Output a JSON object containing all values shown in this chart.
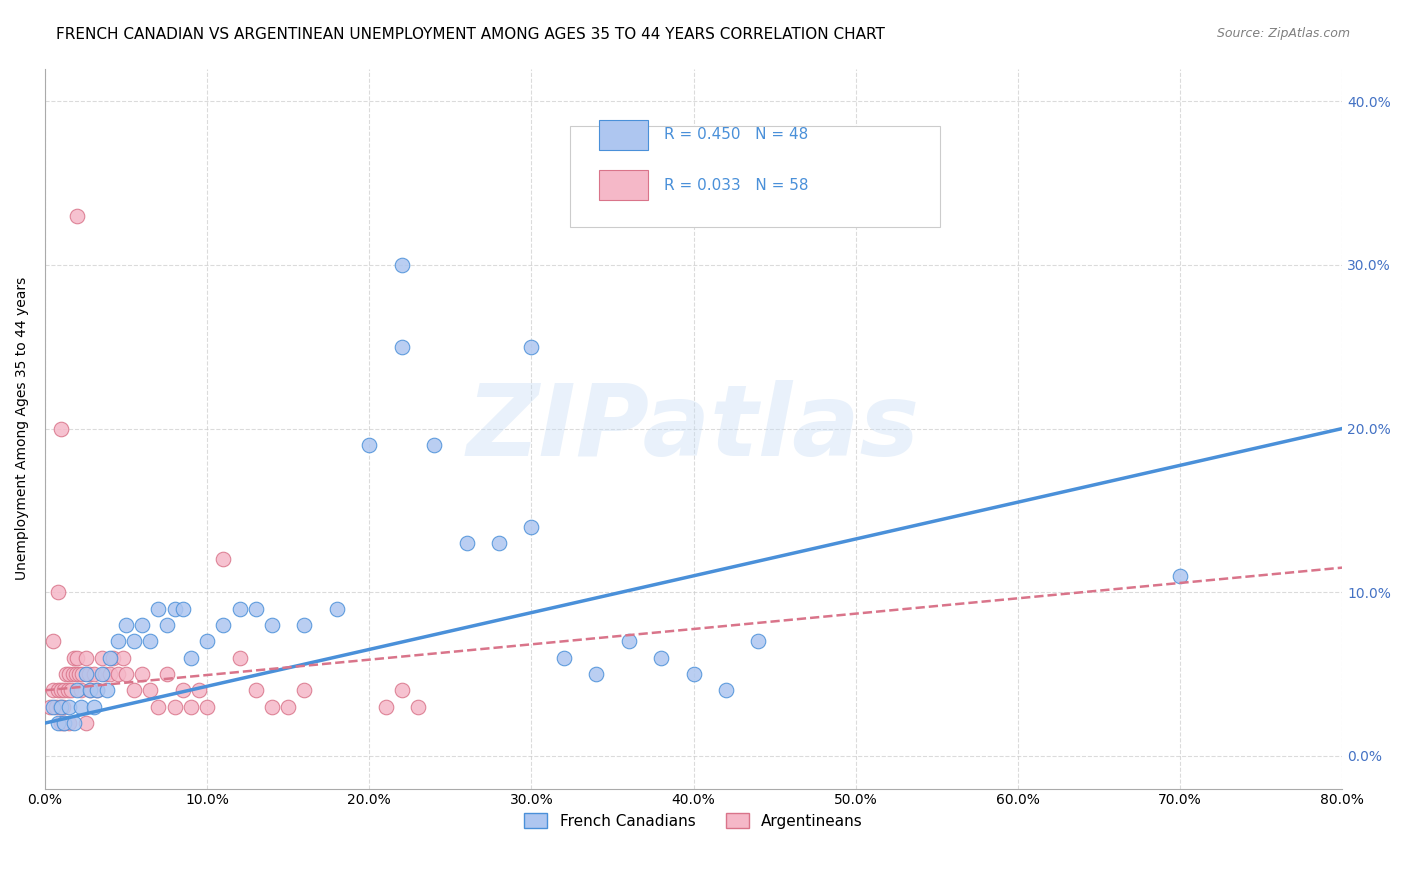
{
  "title": "FRENCH CANADIAN VS ARGENTINEAN UNEMPLOYMENT AMONG AGES 35 TO 44 YEARS CORRELATION CHART",
  "source": "Source: ZipAtlas.com",
  "ylabel": "Unemployment Among Ages 35 to 44 years",
  "xlim": [
    0.0,
    0.8
  ],
  "ylim": [
    -0.02,
    0.42
  ],
  "blue_scatter_x": [
    0.005,
    0.008,
    0.01,
    0.012,
    0.015,
    0.018,
    0.02,
    0.022,
    0.025,
    0.028,
    0.03,
    0.032,
    0.035,
    0.038,
    0.04,
    0.045,
    0.05,
    0.055,
    0.06,
    0.065,
    0.07,
    0.075,
    0.08,
    0.085,
    0.09,
    0.1,
    0.11,
    0.12,
    0.13,
    0.14,
    0.16,
    0.18,
    0.2,
    0.22,
    0.24,
    0.26,
    0.28,
    0.3,
    0.32,
    0.34,
    0.36,
    0.38,
    0.4,
    0.42,
    0.44,
    0.22,
    0.3,
    0.7
  ],
  "blue_scatter_y": [
    0.03,
    0.02,
    0.03,
    0.02,
    0.03,
    0.02,
    0.04,
    0.03,
    0.05,
    0.04,
    0.03,
    0.04,
    0.05,
    0.04,
    0.06,
    0.07,
    0.08,
    0.07,
    0.08,
    0.07,
    0.09,
    0.08,
    0.09,
    0.09,
    0.06,
    0.07,
    0.08,
    0.09,
    0.09,
    0.08,
    0.08,
    0.09,
    0.19,
    0.25,
    0.19,
    0.13,
    0.13,
    0.14,
    0.06,
    0.05,
    0.07,
    0.06,
    0.05,
    0.04,
    0.07,
    0.3,
    0.25,
    0.11
  ],
  "pink_scatter_x": [
    0.003,
    0.005,
    0.007,
    0.008,
    0.009,
    0.01,
    0.011,
    0.012,
    0.013,
    0.014,
    0.015,
    0.016,
    0.017,
    0.018,
    0.019,
    0.02,
    0.021,
    0.022,
    0.023,
    0.025,
    0.027,
    0.028,
    0.03,
    0.032,
    0.035,
    0.037,
    0.04,
    0.042,
    0.045,
    0.048,
    0.05,
    0.055,
    0.06,
    0.065,
    0.07,
    0.075,
    0.08,
    0.085,
    0.09,
    0.095,
    0.1,
    0.11,
    0.12,
    0.13,
    0.14,
    0.15,
    0.16,
    0.21,
    0.22,
    0.23,
    0.005,
    0.008,
    0.01,
    0.012,
    0.015,
    0.01,
    0.02,
    0.025
  ],
  "pink_scatter_y": [
    0.03,
    0.04,
    0.03,
    0.04,
    0.03,
    0.04,
    0.03,
    0.04,
    0.05,
    0.04,
    0.05,
    0.04,
    0.05,
    0.06,
    0.05,
    0.06,
    0.05,
    0.04,
    0.05,
    0.06,
    0.05,
    0.04,
    0.05,
    0.04,
    0.06,
    0.05,
    0.05,
    0.06,
    0.05,
    0.06,
    0.05,
    0.04,
    0.05,
    0.04,
    0.03,
    0.05,
    0.03,
    0.04,
    0.03,
    0.04,
    0.03,
    0.12,
    0.06,
    0.04,
    0.03,
    0.03,
    0.04,
    0.03,
    0.04,
    0.03,
    0.07,
    0.1,
    0.02,
    0.02,
    0.02,
    0.2,
    0.33,
    0.02
  ],
  "blue_line_x": [
    0.0,
    0.8
  ],
  "blue_line_y": [
    0.02,
    0.2
  ],
  "pink_line_x": [
    0.0,
    0.8
  ],
  "pink_line_y": [
    0.04,
    0.115
  ],
  "blue_color": "#4a90d9",
  "blue_fill": "#aec6f0",
  "pink_color": "#d9748a",
  "pink_fill": "#f5b8c8",
  "watermark": "ZIPatlas",
  "background_color": "#ffffff",
  "grid_color": "#cccccc",
  "title_fontsize": 11,
  "axis_label_fontsize": 10,
  "tick_fontsize": 10,
  "right_tick_color": "#4472c4"
}
